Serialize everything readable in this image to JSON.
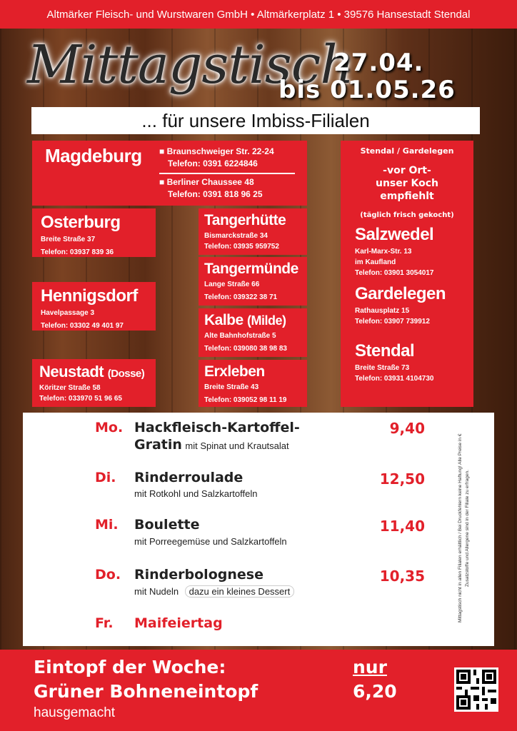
{
  "header": {
    "company_line": "Altmärker Fleisch- und Wurstwaren GmbH • Altmärkerplatz 1 • 39576 Hansestadt Stendal"
  },
  "title": "Mittagstisch",
  "date_from": "27.04.",
  "date_to": "bis 01.05.26",
  "subtitle": "... für unsere Imbiss-Filialen",
  "stores": {
    "magdeburg": {
      "city": "Magdeburg",
      "addr1": "Braunschweiger Str. 22-24",
      "tel1": "Telefon: 0391 6224846",
      "addr2": "Berliner Chaussee 48",
      "tel2": "Telefon: 0391 818 96 25"
    },
    "osterburg": {
      "city": "Osterburg",
      "addr": "Breite Straße 37",
      "tel": "Telefon: 03937 839 36"
    },
    "tangerhuette": {
      "city": "Tangerhütte",
      "addr": "Bismarckstraße 34",
      "tel": "Telefon: 03935 959752"
    },
    "tangermuende": {
      "city": "Tangermünde",
      "addr": "Lange Straße 66",
      "tel": "Telefon: 039322  38 71"
    },
    "hennigsdorf": {
      "city": "Hennigsdorf",
      "addr": "Havelpassage 3",
      "tel": "Telefon: 03302 49 401 97"
    },
    "kalbe": {
      "city": "Kalbe",
      "city_suffix": "(Milde)",
      "addr": "Alte Bahnhofstraße 5",
      "tel": "Telefon: 039080 38 98 83"
    },
    "neustadt": {
      "city": "Neustadt",
      "city_suffix": "(Dosse)",
      "addr": "Köritzer Straße 58",
      "tel": "Telefon: 033970 51 96 65"
    },
    "erxleben": {
      "city": "Erxleben",
      "addr": "Breite Straße 43",
      "tel": "Telefon: 039052  98 11 19"
    }
  },
  "right_box": {
    "header": "Stendal / Gardelegen",
    "koch": [
      "-vor Ort-",
      "unser Koch",
      "empfiehlt"
    ],
    "fresh": "(täglich frisch gekocht)",
    "salzwedel": {
      "city": "Salzwedel",
      "addr": "Karl-Marx-Str. 13",
      "addr2": "im Kaufland",
      "tel": "Telefon: 03901 3054017"
    },
    "gardelegen": {
      "city": "Gardelegen",
      "addr": "Rathausplatz 15",
      "tel": "Telefon: 03907 739912"
    },
    "stendal": {
      "city": "Stendal",
      "addr": "Breite Straße 73",
      "tel": "Telefon: 03931 4104730"
    }
  },
  "menu": [
    {
      "day": "Mo.",
      "dish": "Hackfleisch-Kartoffel-",
      "dish2": "Gratin",
      "side": "mit Spinat und Krautsalat",
      "price": "9,40"
    },
    {
      "day": "Di.",
      "dish": "Rinderroulade",
      "side": "mit Rotkohl und Salzkartoffeln",
      "price": "12,50"
    },
    {
      "day": "Mi.",
      "dish": "Boulette",
      "side": "mit Porreegemüse und Salzkartoffeln",
      "price": "11,40"
    },
    {
      "day": "Do.",
      "dish": "Rinderbolognese",
      "side": "mit Nudeln",
      "extra": "dazu ein kleines Dessert",
      "price": "10,35"
    },
    {
      "day": "Fr.",
      "dish": "Maifeiertag"
    }
  ],
  "note": [
    "Mittagstisch nicht in allen Filialen erhältlich / Bei Druckfehlern keine Haftung! Alle Preise in €",
    "Zusatzstoffe und Allergene sind in der Filiale zu erfragen."
  ],
  "eintopf": {
    "label": "Eintopf der Woche:",
    "name": "Grüner Bohneneintopf",
    "sub": "hausgemacht",
    "nur": "nur",
    "price": "6,20"
  },
  "colors": {
    "red": "#e2202a",
    "white": "#ffffff",
    "wood": "#6a3a1e"
  }
}
